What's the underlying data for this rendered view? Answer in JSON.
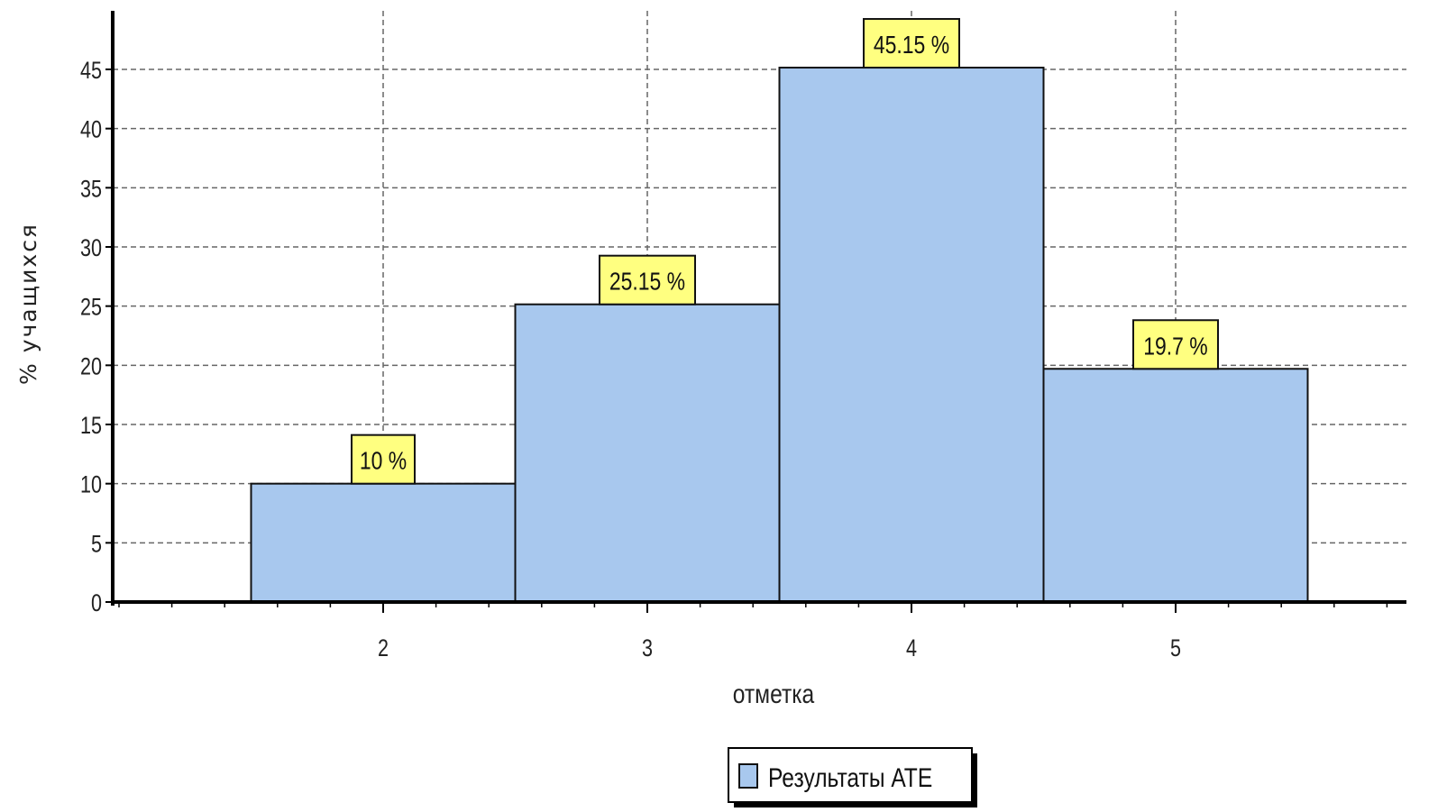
{
  "chart_data": {
    "type": "bar",
    "categories": [
      "2",
      "3",
      "4",
      "5"
    ],
    "series": [
      {
        "name": "Результаты АТЕ",
        "values": [
          10,
          25.15,
          45.15,
          19.7
        ]
      }
    ],
    "data_labels": [
      "10 %",
      "25.15 %",
      "45.15 %",
      "19.7 %"
    ],
    "xlabel": "отметка",
    "ylabel": "% учащихся",
    "ylim": [
      0,
      50
    ],
    "yticks": [
      0,
      5,
      10,
      15,
      20,
      25,
      30,
      35,
      40,
      45
    ],
    "xlim": [
      1,
      6
    ],
    "grid": true,
    "legend_position": "bottom-center",
    "colors": {
      "bar_fill": "#A8C8EE",
      "bar_stroke": "#111111",
      "label_fill": "#FFFF80",
      "grid": "#666666",
      "axis": "#000000"
    }
  }
}
